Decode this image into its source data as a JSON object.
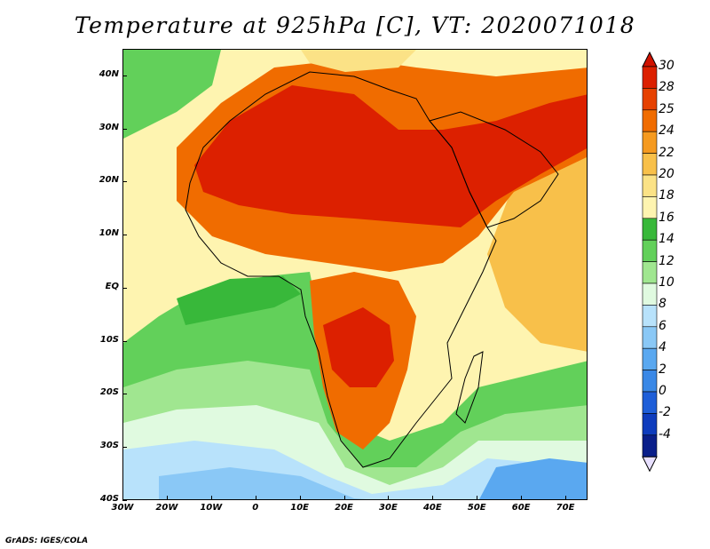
{
  "title": "Temperature at 925hPa [C], VT: 2020071018",
  "credit": "GrADS: IGES/COLA",
  "map": {
    "projection": "latlon",
    "lon_range": [
      -30,
      75
    ],
    "lat_range": [
      -40,
      45
    ],
    "x_ticks": [
      "30W",
      "20W",
      "10W",
      "0",
      "10E",
      "20E",
      "30E",
      "40E",
      "50E",
      "60E",
      "70E"
    ],
    "x_tick_values": [
      -30,
      -20,
      -10,
      0,
      10,
      20,
      30,
      40,
      50,
      60,
      70
    ],
    "y_ticks": [
      "40N",
      "30N",
      "20N",
      "10N",
      "EQ",
      "10S",
      "20S",
      "30S",
      "40S"
    ],
    "y_tick_values": [
      40,
      30,
      20,
      10,
      0,
      -10,
      -20,
      -30,
      -40
    ]
  },
  "colorbar": {
    "labels": [
      "30",
      "28",
      "25",
      "24",
      "22",
      "20",
      "18",
      "16",
      "14",
      "12",
      "10",
      "8",
      "6",
      "4",
      "2",
      "0",
      "-2",
      "-4"
    ],
    "values": [
      30,
      28,
      25,
      24,
      22,
      20,
      18,
      16,
      14,
      12,
      10,
      8,
      6,
      4,
      2,
      0,
      -2,
      -4
    ],
    "colors": [
      "#dc2000",
      "#e64100",
      "#f06c00",
      "#f59a20",
      "#f8c04a",
      "#fbe286",
      "#fef4b0",
      "#38b83a",
      "#62d05a",
      "#a0e690",
      "#e0fae0",
      "#b8e2fb",
      "#8ac8f6",
      "#5aa8f0",
      "#3a88e6",
      "#1e5ed8",
      "#0e3cbd",
      "#0a1f8a"
    ],
    "over_color": "#d01200",
    "under_color": "#e8e0ff"
  }
}
